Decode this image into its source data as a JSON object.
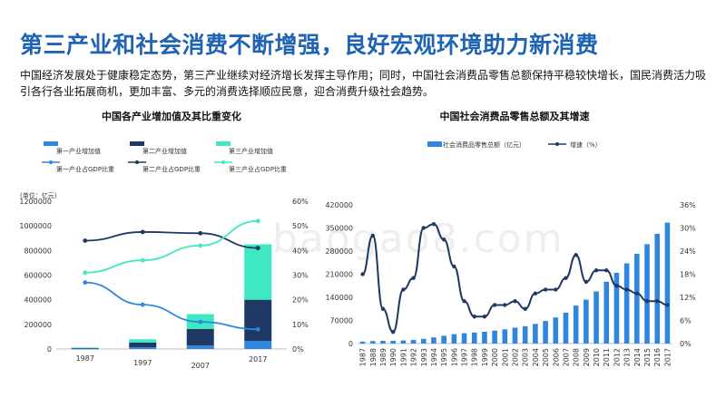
{
  "page": {
    "headline": "第三产业和社会消费不断增强，良好宏观环境助力新消费",
    "intro": "中国经济发展处于健康稳定态势，第三产业继续对经济增长发挥主导作用；同时，中国社会消费品零售总额保持平稳较快增长，国民消费活力吸引各行各业拓展商机，更加丰富、多元的消费选择顺应民意，迎合消费升级社会趋势。",
    "watermark": "baogao8.com"
  },
  "colors": {
    "primary": "#2e86de",
    "secondary": "#1f3864",
    "tertiary": "#3ee8c2",
    "headline": "#1f63b5"
  },
  "chart_data": [
    {
      "type": "bar",
      "stacked": true,
      "title": "中国各产业增加值及其比重变化",
      "unit_label": "(单位：亿元)",
      "categories": [
        "1987",
        "1997",
        "2007",
        "2017"
      ],
      "ylim": [
        0,
        1200000
      ],
      "yticks": [
        "0",
        "200000",
        "400000",
        "600000",
        "800000",
        "1000000",
        "1200000"
      ],
      "y2lim": [
        0,
        0.6
      ],
      "y2ticks": [
        "0%",
        "10%",
        "20%",
        "30%",
        "40%",
        "50%",
        "60%"
      ],
      "legend": [
        "第一产业增加值",
        "第二产业增加值",
        "第三产业增加值",
        "第一产业占GDP比重",
        "第二产业占GDP比重",
        "第三产业占GDP比重"
      ],
      "series": [
        {
          "name": "第一产业增加值",
          "kind": "bar",
          "axis": "left",
          "color": "#2e86de",
          "values": [
            3000,
            14000,
            28000,
            65000
          ]
        },
        {
          "name": "第二产业增加值",
          "kind": "bar",
          "axis": "left",
          "color": "#1f3864",
          "values": [
            5000,
            38000,
            135000,
            335000
          ]
        },
        {
          "name": "第三产业增加值",
          "kind": "bar",
          "axis": "left",
          "color": "#3ee8c2",
          "values": [
            4000,
            27000,
            120000,
            450000
          ]
        },
        {
          "name": "第一产业占GDP比重",
          "kind": "line",
          "axis": "right",
          "color": "#2e86de",
          "values": [
            0.27,
            0.18,
            0.11,
            0.08
          ]
        },
        {
          "name": "第二产业占GDP比重",
          "kind": "line",
          "axis": "right",
          "color": "#1f3864",
          "values": [
            0.44,
            0.475,
            0.47,
            0.41
          ]
        },
        {
          "name": "第三产业占GDP比重",
          "kind": "line",
          "axis": "right",
          "color": "#3ee8c2",
          "values": [
            0.31,
            0.36,
            0.42,
            0.52
          ]
        }
      ]
    },
    {
      "type": "bar",
      "title": "中国社会消费品零售总额及其增速",
      "categories": [
        "1987",
        "1988",
        "1989",
        "1990",
        "1991",
        "1992",
        "1993",
        "1994",
        "1995",
        "1996",
        "1997",
        "1998",
        "1999",
        "2000",
        "2001",
        "2002",
        "2003",
        "2004",
        "2005",
        "2006",
        "2007",
        "2008",
        "2009",
        "2010",
        "2011",
        "2012",
        "2013",
        "2014",
        "2015",
        "2016",
        "2017"
      ],
      "ylim": [
        0,
        420000
      ],
      "yticks": [
        "0",
        "70000",
        "140000",
        "210000",
        "280000",
        "350000",
        "420000"
      ],
      "y2lim": [
        0,
        0.36
      ],
      "y2ticks": [
        "0%",
        "6%",
        "12%",
        "18%",
        "24%",
        "30%",
        "36%"
      ],
      "legend": [
        "社会消费品零售总额（亿元）",
        "增速（%）"
      ],
      "series": [
        {
          "name": "社会消费品零售总额（亿元）",
          "kind": "bar",
          "axis": "left",
          "color": "#2e86de",
          "values": [
            5800,
            7400,
            8100,
            8300,
            9400,
            10900,
            14300,
            18600,
            23600,
            28400,
            31300,
            33400,
            35600,
            39100,
            43100,
            48100,
            52500,
            59500,
            68400,
            79100,
            93600,
            114800,
            133000,
            158000,
            187200,
            214400,
            242800,
            271900,
            300900,
            332300,
            366300
          ]
        },
        {
          "name": "增速（%）",
          "kind": "line",
          "axis": "right",
          "color": "#1f3864",
          "values": [
            0.18,
            0.28,
            0.09,
            0.03,
            0.14,
            0.17,
            0.3,
            0.31,
            0.27,
            0.2,
            0.11,
            0.07,
            0.07,
            0.1,
            0.1,
            0.11,
            0.09,
            0.13,
            0.14,
            0.14,
            0.17,
            0.23,
            0.16,
            0.19,
            0.19,
            0.15,
            0.14,
            0.13,
            0.11,
            0.11,
            0.1
          ]
        }
      ]
    }
  ]
}
